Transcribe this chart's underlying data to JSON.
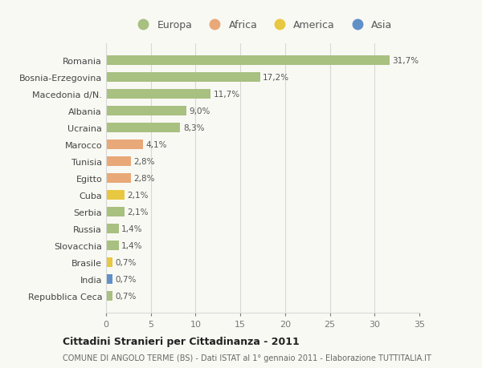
{
  "countries": [
    "Romania",
    "Bosnia-Erzegovina",
    "Macedonia d/N.",
    "Albania",
    "Ucraina",
    "Marocco",
    "Tunisia",
    "Egitto",
    "Cuba",
    "Serbia",
    "Russia",
    "Slovacchia",
    "Brasile",
    "India",
    "Repubblica Ceca"
  ],
  "values": [
    31.7,
    17.2,
    11.7,
    9.0,
    8.3,
    4.1,
    2.8,
    2.8,
    2.1,
    2.1,
    1.4,
    1.4,
    0.7,
    0.7,
    0.7
  ],
  "labels": [
    "31,7%",
    "17,2%",
    "11,7%",
    "9,0%",
    "8,3%",
    "4,1%",
    "2,8%",
    "2,8%",
    "2,1%",
    "2,1%",
    "1,4%",
    "1,4%",
    "0,7%",
    "0,7%",
    "0,7%"
  ],
  "bar_colors": [
    "#a8c080",
    "#a8c080",
    "#a8c080",
    "#a8c080",
    "#a8c080",
    "#e8a878",
    "#e8a878",
    "#e8a878",
    "#e8c840",
    "#a8c080",
    "#a8c080",
    "#a8c080",
    "#e8c840",
    "#6090c8",
    "#a8c080"
  ],
  "legend_labels": [
    "Europa",
    "Africa",
    "America",
    "Asia"
  ],
  "legend_colors": [
    "#a8c080",
    "#e8a878",
    "#e8c840",
    "#6090c8"
  ],
  "xlim": [
    0,
    35
  ],
  "xticks": [
    0,
    5,
    10,
    15,
    20,
    25,
    30,
    35
  ],
  "title": "Cittadini Stranieri per Cittadinanza - 2011",
  "subtitle": "COMUNE DI ANGOLO TERME (BS) - Dati ISTAT al 1° gennaio 2011 - Elaborazione TUTTITALIA.IT",
  "background_color": "#f9f9f4",
  "grid_color": "#d8d8d8"
}
